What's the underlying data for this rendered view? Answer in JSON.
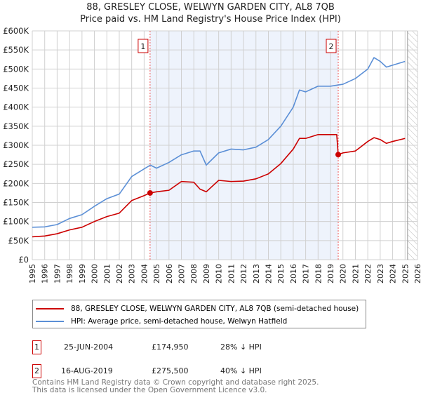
{
  "chart_data": {
    "type": "line",
    "title": "88, GRESLEY CLOSE, WELWYN GARDEN CITY, AL8 7QB",
    "subtitle": "Price paid vs. HM Land Registry's House Price Index (HPI)",
    "xlim": [
      1995,
      2026
    ],
    "ylim": [
      0,
      600000
    ],
    "x_ticks": [
      "1995",
      "1996",
      "1997",
      "1998",
      "1999",
      "2000",
      "2001",
      "2002",
      "2003",
      "2004",
      "2005",
      "2006",
      "2007",
      "2008",
      "2009",
      "2010",
      "2011",
      "2012",
      "2013",
      "2014",
      "2015",
      "2016",
      "2017",
      "2018",
      "2019",
      "2020",
      "2021",
      "2022",
      "2023",
      "2024",
      "2025",
      "2026"
    ],
    "y_ticks": [
      {
        "v": 0,
        "label": "£0"
      },
      {
        "v": 50000,
        "label": "£50K"
      },
      {
        "v": 100000,
        "label": "£100K"
      },
      {
        "v": 150000,
        "label": "£150K"
      },
      {
        "v": 200000,
        "label": "£200K"
      },
      {
        "v": 250000,
        "label": "£250K"
      },
      {
        "v": 300000,
        "label": "£300K"
      },
      {
        "v": 350000,
        "label": "£350K"
      },
      {
        "v": 400000,
        "label": "£400K"
      },
      {
        "v": 450000,
        "label": "£450K"
      },
      {
        "v": 500000,
        "label": "£500K"
      },
      {
        "v": 550000,
        "label": "£550K"
      },
      {
        "v": 600000,
        "label": "£600K"
      }
    ],
    "grid": true,
    "shaded_period": [
      2004.48,
      2019.62
    ],
    "forecast_hatch_from": 2025.2,
    "series": [
      {
        "name": "88, GRESLEY CLOSE, WELWYN GARDEN CITY, AL8 7QB (semi-detached house)",
        "color": "#cc0000",
        "x": [
          1995,
          1996,
          1997,
          1998,
          1999,
          2000,
          2001,
          2002,
          2003,
          2004,
          2004.48,
          2005,
          2006,
          2007,
          2008,
          2008.5,
          2009,
          2010,
          2011,
          2012,
          2013,
          2014,
          2015,
          2016,
          2016.5,
          2017,
          2018,
          2019.5,
          2019.62,
          2020,
          2021,
          2022,
          2022.5,
          2023,
          2023.5,
          2024,
          2025
        ],
        "y": [
          60000,
          62000,
          68000,
          78000,
          85000,
          100000,
          113000,
          122000,
          155000,
          168000,
          174950,
          178000,
          182000,
          205000,
          203000,
          185000,
          178000,
          208000,
          205000,
          206000,
          212000,
          225000,
          252000,
          290000,
          318000,
          318000,
          328000,
          328000,
          275500,
          280000,
          285000,
          310000,
          320000,
          315000,
          305000,
          310000,
          318000
        ]
      },
      {
        "name": "HPI: Average price, semi-detached house, Welwyn Hatfield",
        "color": "#5b8fd6",
        "x": [
          1995,
          1996,
          1997,
          1998,
          1999,
          2000,
          2001,
          2002,
          2003,
          2004,
          2004.5,
          2005,
          2006,
          2007,
          2008,
          2008.5,
          2009,
          2010,
          2011,
          2012,
          2013,
          2014,
          2015,
          2016,
          2016.5,
          2017,
          2018,
          2019,
          2020,
          2021,
          2022,
          2022.5,
          2023,
          2023.5,
          2024,
          2025
        ],
        "y": [
          85000,
          86000,
          92000,
          108000,
          118000,
          140000,
          160000,
          172000,
          218000,
          238000,
          248000,
          240000,
          255000,
          275000,
          285000,
          285000,
          248000,
          280000,
          290000,
          288000,
          295000,
          315000,
          350000,
          400000,
          445000,
          440000,
          455000,
          455000,
          460000,
          475000,
          500000,
          530000,
          520000,
          505000,
          510000,
          520000
        ]
      }
    ],
    "sales": [
      {
        "id": "1",
        "date": "25-JUN-2004",
        "x": 2004.48,
        "price": "£174,950",
        "value": 174950,
        "hpi": "28% ↓ HPI"
      },
      {
        "id": "2",
        "date": "16-AUG-2019",
        "x": 2019.62,
        "price": "£275,500",
        "value": 275500,
        "hpi": "40% ↓ HPI"
      }
    ]
  },
  "footer": {
    "line1": "Contains HM Land Registry data © Crown copyright and database right 2025.",
    "line2": "This data is licensed under the Open Government Licence v3.0."
  }
}
